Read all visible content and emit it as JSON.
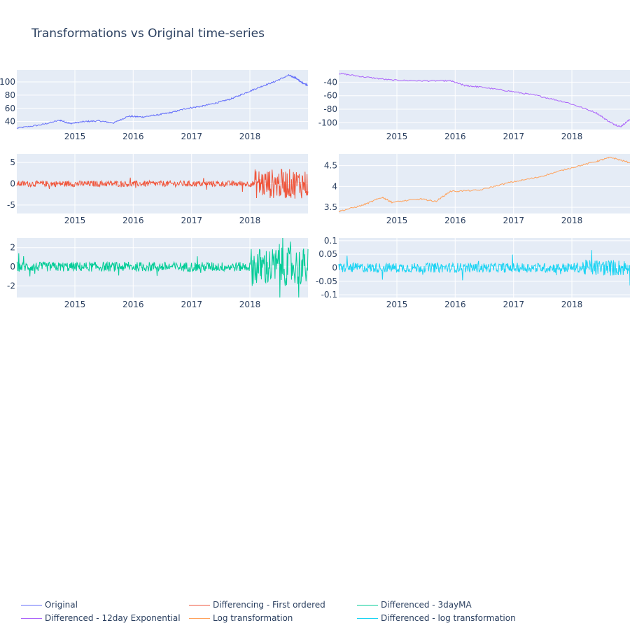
{
  "title": "Transformations vs Original time-series",
  "chart_data": [
    {
      "type": "line",
      "name": "Original",
      "color": "#636efa",
      "xlim": [
        "2014-01-02",
        "2018-12-31"
      ],
      "xticks": [
        "2015",
        "2016",
        "2017",
        "2018"
      ],
      "ylim": [
        28,
        118
      ],
      "yticks": [
        40,
        60,
        80,
        100
      ],
      "series_points": [
        [
          "2014-01-02",
          30
        ],
        [
          "2014-06-01",
          35
        ],
        [
          "2014-10-01",
          42
        ],
        [
          "2014-12-01",
          37
        ],
        [
          "2015-03-01",
          40
        ],
        [
          "2015-06-01",
          41
        ],
        [
          "2015-09-01",
          38
        ],
        [
          "2015-12-01",
          48
        ],
        [
          "2016-03-01",
          47
        ],
        [
          "2016-06-01",
          50
        ],
        [
          "2016-09-01",
          54
        ],
        [
          "2016-12-01",
          60
        ],
        [
          "2017-03-01",
          63
        ],
        [
          "2017-06-01",
          68
        ],
        [
          "2017-09-01",
          74
        ],
        [
          "2017-12-01",
          83
        ],
        [
          "2018-03-01",
          92
        ],
        [
          "2018-06-01",
          100
        ],
        [
          "2018-09-01",
          110
        ],
        [
          "2018-10-15",
          106
        ],
        [
          "2018-11-15",
          100
        ],
        [
          "2018-12-31",
          95
        ]
      ]
    },
    {
      "type": "line",
      "name": "Differenced - 12day Exponential",
      "color": "#ab63fa",
      "xlim": [
        "2014-01-02",
        "2018-12-31"
      ],
      "xticks": [
        "2015",
        "2016",
        "2017",
        "2018"
      ],
      "ylim": [
        -110,
        -22
      ],
      "yticks": [
        -40,
        -60,
        -80,
        -100
      ],
      "series_points": [
        [
          "2014-01-02",
          -27
        ],
        [
          "2014-06-01",
          -32
        ],
        [
          "2014-12-01",
          -37
        ],
        [
          "2015-06-01",
          -38
        ],
        [
          "2015-12-01",
          -38
        ],
        [
          "2016-03-01",
          -45
        ],
        [
          "2016-06-01",
          -47
        ],
        [
          "2016-12-01",
          -53
        ],
        [
          "2017-06-01",
          -60
        ],
        [
          "2017-12-01",
          -70
        ],
        [
          "2018-06-01",
          -85
        ],
        [
          "2018-09-01",
          -100
        ],
        [
          "2018-11-01",
          -106
        ],
        [
          "2018-12-31",
          -95
        ]
      ]
    },
    {
      "type": "line",
      "name": "Differencing - First ordered",
      "color": "#ef553b",
      "xlim": [
        "2014-01-02",
        "2018-12-31"
      ],
      "xticks": [
        "2015",
        "2016",
        "2017",
        "2018"
      ],
      "ylim": [
        -7,
        7
      ],
      "yticks": [
        5,
        0,
        -5
      ],
      "noise": {
        "base_amplitude": 0.7,
        "late_amplitude": 3.5,
        "late_from": "2018-02-01"
      }
    },
    {
      "type": "line",
      "name": "Log transformation",
      "color": "#ffa15a",
      "xlim": [
        "2014-01-02",
        "2018-12-31"
      ],
      "xticks": [
        "2015",
        "2016",
        "2017",
        "2018"
      ],
      "ylim": [
        3.35,
        4.78
      ],
      "yticks": [
        3.5,
        4,
        4.5
      ],
      "series_points": [
        [
          "2014-01-02",
          3.4
        ],
        [
          "2014-06-01",
          3.55
        ],
        [
          "2014-10-01",
          3.74
        ],
        [
          "2014-12-01",
          3.62
        ],
        [
          "2015-06-01",
          3.7
        ],
        [
          "2015-09-01",
          3.64
        ],
        [
          "2015-12-01",
          3.88
        ],
        [
          "2016-06-01",
          3.91
        ],
        [
          "2016-12-01",
          4.09
        ],
        [
          "2017-06-01",
          4.22
        ],
        [
          "2017-12-01",
          4.42
        ],
        [
          "2018-06-01",
          4.6
        ],
        [
          "2018-09-01",
          4.7
        ],
        [
          "2018-12-31",
          4.57
        ]
      ]
    },
    {
      "type": "line",
      "name": "Differenced - 3dayMA",
      "color": "#00cc96",
      "xlim": [
        "2014-01-02",
        "2018-12-31"
      ],
      "xticks": [
        "2015",
        "2016",
        "2017",
        "2018"
      ],
      "ylim": [
        -3.2,
        3.0
      ],
      "yticks": [
        2,
        0,
        -2
      ],
      "noise": {
        "base_amplitude": 0.5,
        "late_amplitude": 2.0,
        "late_from": "2018-01-01"
      }
    },
    {
      "type": "line",
      "name": "Differenced - log transformation",
      "color": "#19d3f3",
      "xlim": [
        "2014-01-02",
        "2018-12-31"
      ],
      "xticks": [
        "2015",
        "2016",
        "2017",
        "2018"
      ],
      "ylim": [
        -0.11,
        0.11
      ],
      "yticks": [
        0.1,
        0.05,
        0,
        -0.05,
        -0.1
      ],
      "noise": {
        "base_amplitude": 0.018,
        "late_amplitude": 0.03,
        "late_from": "2018-03-01"
      }
    }
  ],
  "legend": [
    {
      "label": "Original",
      "color": "#636efa"
    },
    {
      "label": "Differencing - First ordered",
      "color": "#ef553b"
    },
    {
      "label": "Differenced - 3dayMA",
      "color": "#00cc96"
    },
    {
      "label": "Differenced - 12day Exponential",
      "color": "#ab63fa"
    },
    {
      "label": "Log transformation",
      "color": "#ffa15a"
    },
    {
      "label": "Differenced - log transformation",
      "color": "#19d3f3"
    }
  ]
}
